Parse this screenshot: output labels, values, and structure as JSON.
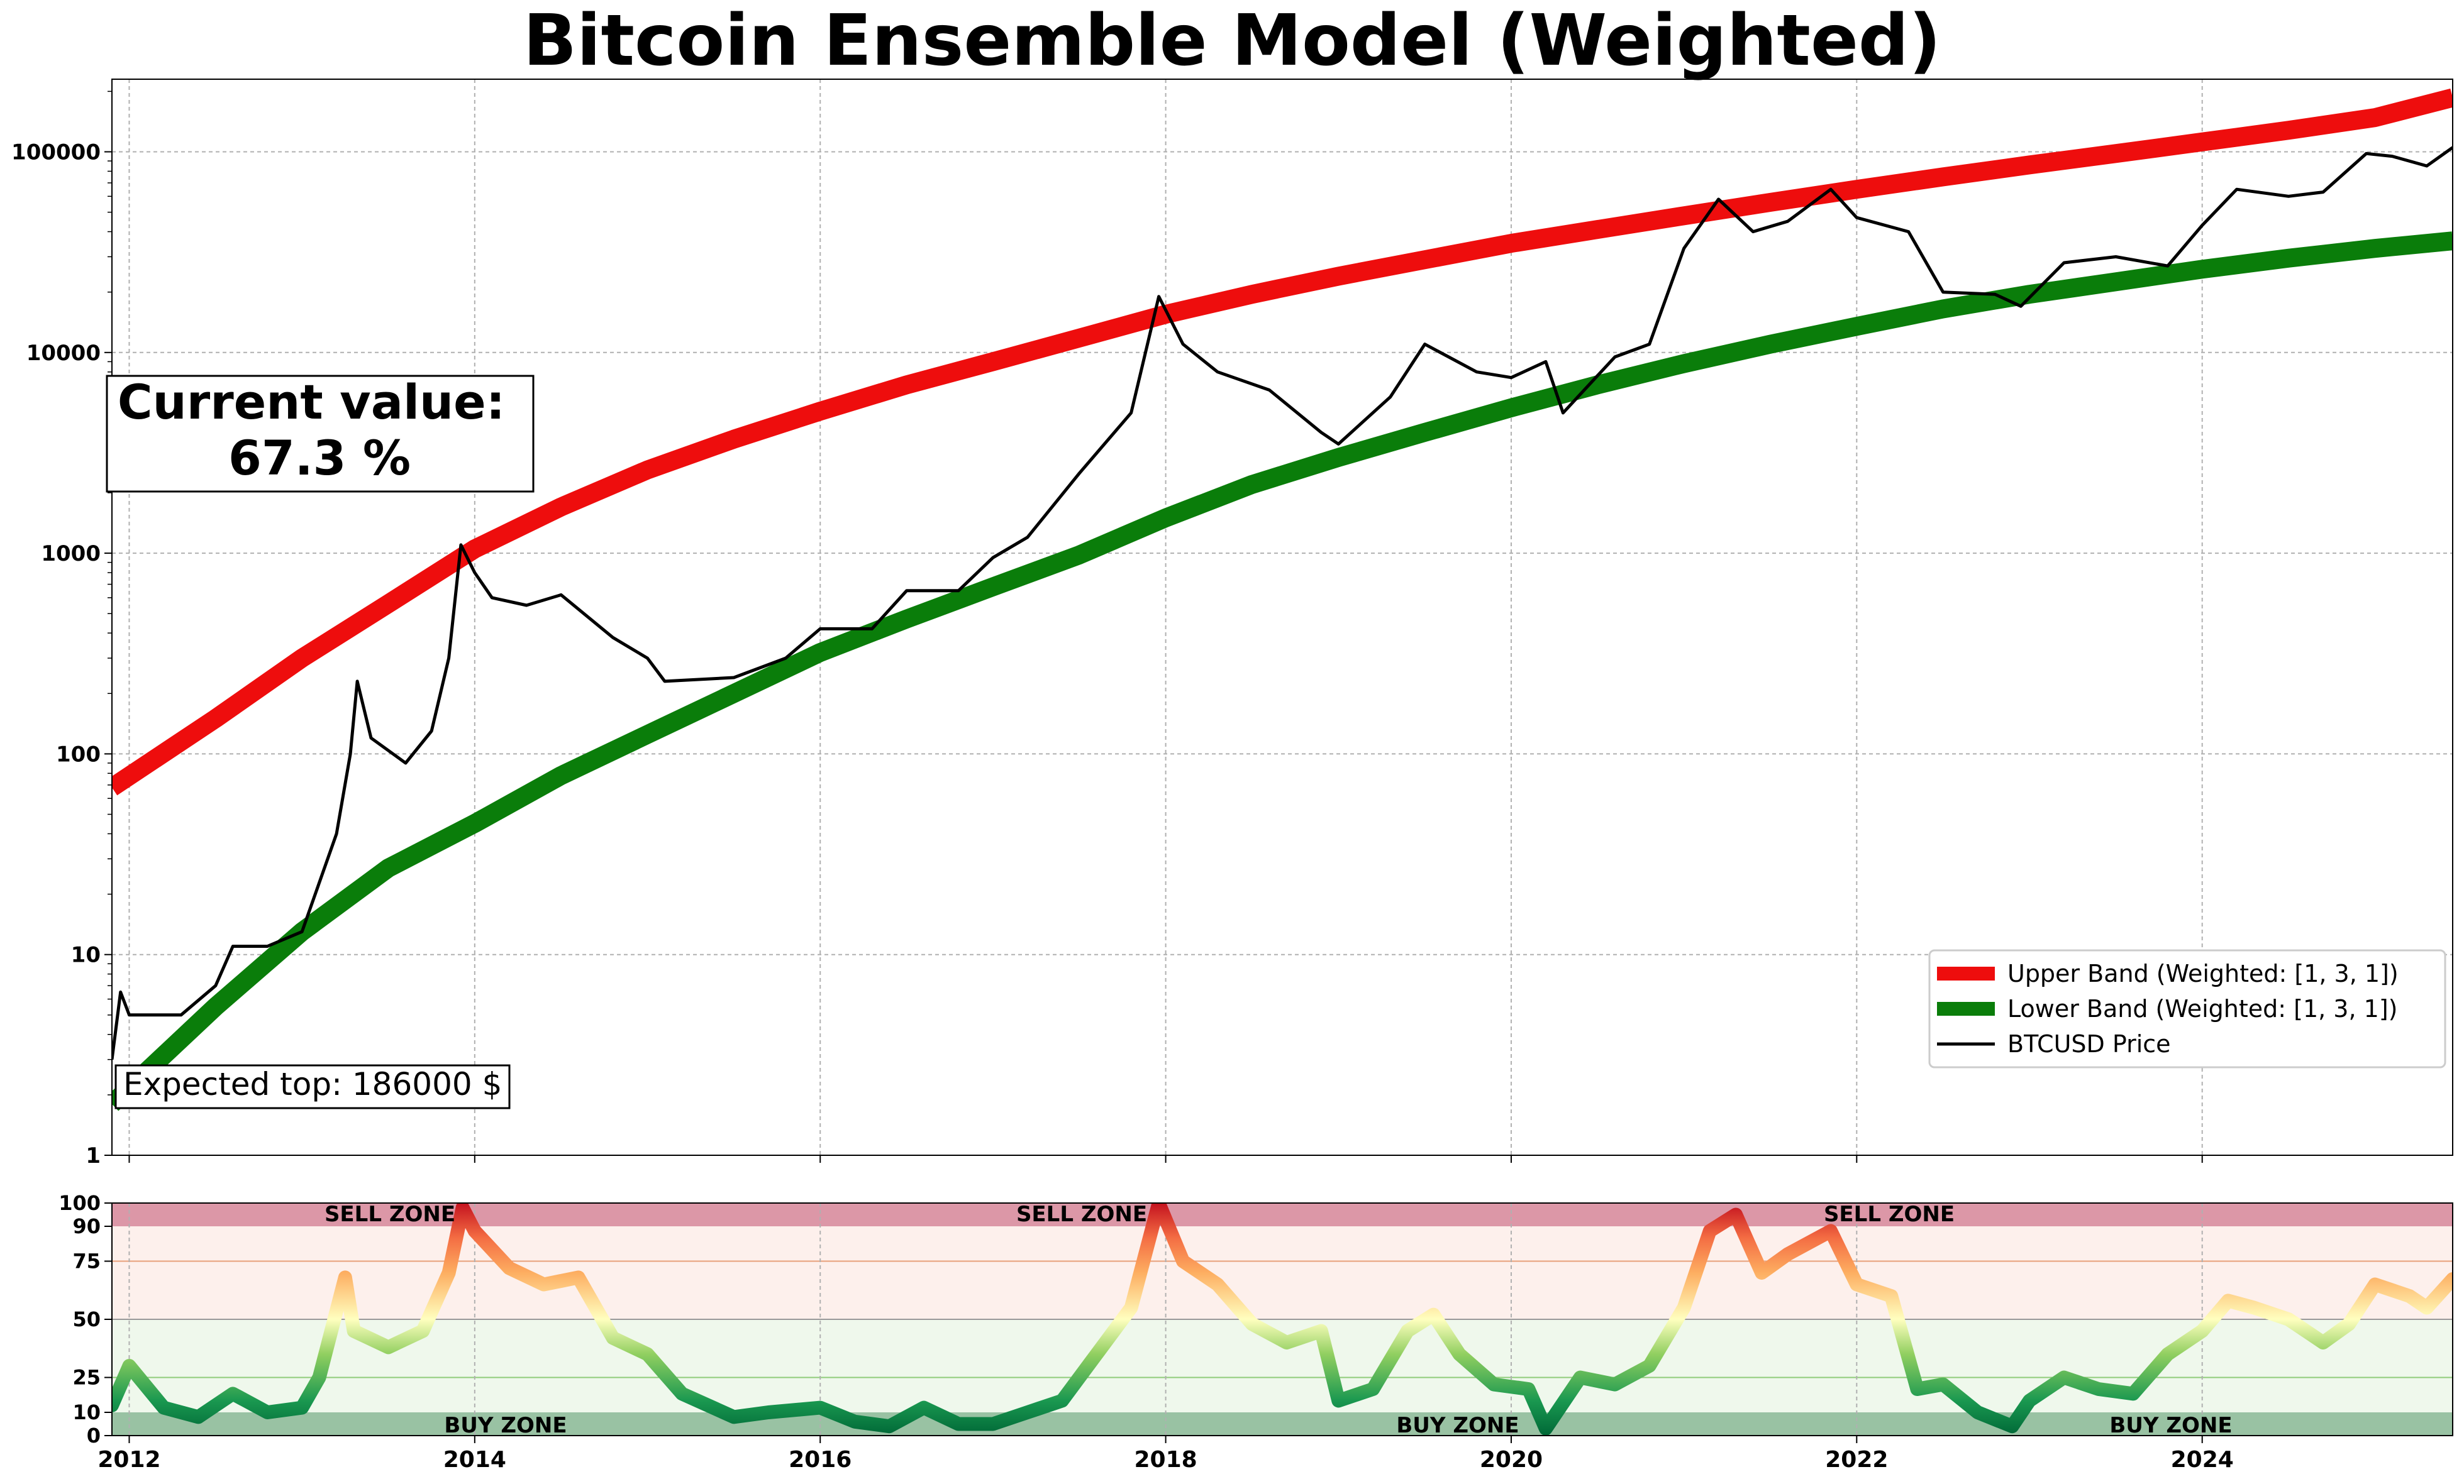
{
  "title": "Bitcoin Ensemble Model (Weighted)",
  "current_value": {
    "label": "Current value:",
    "value": "67.3 %"
  },
  "expected_top": "Expected top: 186000 $",
  "legend": [
    {
      "label": "Upper Band (Weighted: [1, 3, 1])",
      "color": "#ee0d0d"
    },
    {
      "label": "Lower Band (Weighted: [1, 3, 1])",
      "color": "#0a7d0a"
    },
    {
      "label": "BTCUSD Price",
      "color": "#000000"
    }
  ],
  "zones": {
    "sell": "SELL ZONE",
    "buy": "BUY ZONE"
  },
  "colors": {
    "sell_band": "#dc97a7",
    "buy_band": "#99c2a3",
    "upper_bg": "#fdf0ec",
    "lower_bg": "#eff8ec"
  },
  "chart_data": [
    {
      "type": "line",
      "title": "Bitcoin Ensemble Model (Weighted)",
      "y_scale": "log",
      "xlim": [
        2011.9,
        2025.45
      ],
      "ylim": [
        1,
        230000
      ],
      "x_ticks": [
        "2012",
        "2014",
        "2016",
        "2018",
        "2020",
        "2022",
        "2024"
      ],
      "y_ticks": [
        "1",
        "10",
        "100",
        "1000",
        "10000",
        "100000"
      ],
      "grid": true,
      "legend_position": "lower-right",
      "series": [
        {
          "name": "Upper Band (Weighted: [1, 3, 1])",
          "color": "#ee0d0d",
          "x": [
            2011.9,
            2012.5,
            2013.0,
            2013.5,
            2014.0,
            2014.5,
            2015.0,
            2015.5,
            2016.0,
            2016.5,
            2017.0,
            2017.5,
            2018.0,
            2018.5,
            2019.0,
            2019.5,
            2020.0,
            2020.5,
            2021.0,
            2021.5,
            2022.0,
            2022.5,
            2023.0,
            2023.5,
            2024.0,
            2024.5,
            2025.0,
            2025.45
          ],
          "y": [
            68,
            150,
            300,
            560,
            1050,
            1700,
            2600,
            3700,
            5100,
            6900,
            9000,
            11800,
            15500,
            19500,
            24000,
            29000,
            35000,
            41000,
            48000,
            56000,
            65000,
            75000,
            86000,
            98000,
            112000,
            128000,
            148000,
            186000
          ]
        },
        {
          "name": "Lower Band (Weighted: [1, 3, 1])",
          "color": "#0a7d0a",
          "x": [
            2011.9,
            2012.5,
            2013.0,
            2013.5,
            2014.0,
            2014.5,
            2015.0,
            2015.5,
            2016.0,
            2016.5,
            2017.0,
            2017.5,
            2018.0,
            2018.5,
            2019.0,
            2019.5,
            2020.0,
            2020.5,
            2021.0,
            2021.5,
            2022.0,
            2022.5,
            2023.0,
            2023.5,
            2024.0,
            2024.5,
            2025.0,
            2025.45
          ],
          "y": [
            1.8,
            5.5,
            13,
            27,
            45,
            78,
            125,
            200,
            320,
            470,
            680,
            980,
            1500,
            2200,
            3000,
            4000,
            5300,
            6900,
            8800,
            11000,
            13500,
            16500,
            19500,
            22500,
            26000,
            29500,
            33000,
            36000
          ]
        },
        {
          "name": "BTCUSD Price",
          "color": "#000000",
          "x": [
            2011.9,
            2011.95,
            2012.0,
            2012.1,
            2012.3,
            2012.5,
            2012.6,
            2012.8,
            2013.0,
            2013.2,
            2013.28,
            2013.32,
            2013.4,
            2013.6,
            2013.75,
            2013.85,
            2013.92,
            2014.0,
            2014.1,
            2014.3,
            2014.5,
            2014.8,
            2015.0,
            2015.1,
            2015.5,
            2015.8,
            2016.0,
            2016.3,
            2016.5,
            2016.8,
            2017.0,
            2017.2,
            2017.5,
            2017.8,
            2017.96,
            2018.1,
            2018.3,
            2018.6,
            2018.9,
            2019.0,
            2019.3,
            2019.5,
            2019.8,
            2020.0,
            2020.2,
            2020.3,
            2020.6,
            2020.8,
            2021.0,
            2021.2,
            2021.4,
            2021.6,
            2021.85,
            2022.0,
            2022.3,
            2022.5,
            2022.8,
            2022.95,
            2023.2,
            2023.5,
            2023.8,
            2024.0,
            2024.2,
            2024.5,
            2024.7,
            2024.95,
            2025.1,
            2025.3,
            2025.45
          ],
          "y": [
            3,
            6.5,
            5,
            5,
            5,
            7,
            11,
            11,
            13,
            40,
            100,
            230,
            120,
            90,
            130,
            300,
            1100,
            800,
            600,
            550,
            620,
            380,
            300,
            230,
            240,
            300,
            420,
            420,
            650,
            650,
            950,
            1200,
            2500,
            5000,
            19000,
            11000,
            8000,
            6500,
            4000,
            3500,
            6000,
            11000,
            8000,
            7500,
            9000,
            5000,
            9500,
            11000,
            33000,
            58000,
            40000,
            45000,
            65000,
            47000,
            40000,
            20000,
            19500,
            17000,
            28000,
            30000,
            27000,
            43000,
            65000,
            60000,
            63000,
            98000,
            95000,
            85000,
            105000
          ]
        }
      ]
    },
    {
      "type": "area",
      "ylim": [
        0,
        100
      ],
      "y_ticks": [
        "0",
        "10",
        "25",
        "50",
        "75",
        "90",
        "100"
      ],
      "x_ticks": [
        "2012",
        "2014",
        "2016",
        "2018",
        "2020",
        "2022",
        "2024"
      ],
      "zones": [
        {
          "label": "SELL ZONE",
          "range": [
            90,
            100
          ]
        },
        {
          "label": "BUY ZONE",
          "range": [
            0,
            10
          ]
        }
      ],
      "series": [
        {
          "name": "",
          "x": [
            2011.9,
            2012.0,
            2012.2,
            2012.4,
            2012.6,
            2012.8,
            2013.0,
            2013.1,
            2013.25,
            2013.3,
            2013.5,
            2013.7,
            2013.85,
            2013.93,
            2014.0,
            2014.2,
            2014.4,
            2014.6,
            2014.8,
            2015.0,
            2015.2,
            2015.5,
            2015.7,
            2016.0,
            2016.2,
            2016.4,
            2016.6,
            2016.8,
            2017.0,
            2017.2,
            2017.4,
            2017.6,
            2017.8,
            2017.96,
            2018.1,
            2018.3,
            2018.5,
            2018.7,
            2018.9,
            2019.0,
            2019.2,
            2019.4,
            2019.55,
            2019.7,
            2019.9,
            2020.1,
            2020.2,
            2020.4,
            2020.6,
            2020.8,
            2021.0,
            2021.15,
            2021.3,
            2021.45,
            2021.6,
            2021.85,
            2022.0,
            2022.2,
            2022.35,
            2022.5,
            2022.7,
            2022.9,
            2023.0,
            2023.2,
            2023.4,
            2023.6,
            2023.8,
            2024.0,
            2024.15,
            2024.3,
            2024.5,
            2024.7,
            2024.85,
            2025.0,
            2025.2,
            2025.3,
            2025.45
          ],
          "y": [
            13,
            30,
            12,
            8,
            18,
            10,
            12,
            25,
            68,
            45,
            38,
            45,
            70,
            98,
            88,
            72,
            65,
            68,
            42,
            35,
            18,
            8,
            10,
            12,
            6,
            4,
            12,
            5,
            5,
            10,
            15,
            35,
            55,
            100,
            75,
            65,
            48,
            40,
            45,
            15,
            20,
            45,
            52,
            35,
            22,
            20,
            3,
            25,
            22,
            30,
            55,
            88,
            95,
            70,
            78,
            88,
            65,
            60,
            20,
            22,
            10,
            4,
            15,
            25,
            20,
            18,
            35,
            45,
            58,
            55,
            50,
            40,
            48,
            65,
            60,
            55,
            67.3
          ]
        }
      ]
    }
  ]
}
